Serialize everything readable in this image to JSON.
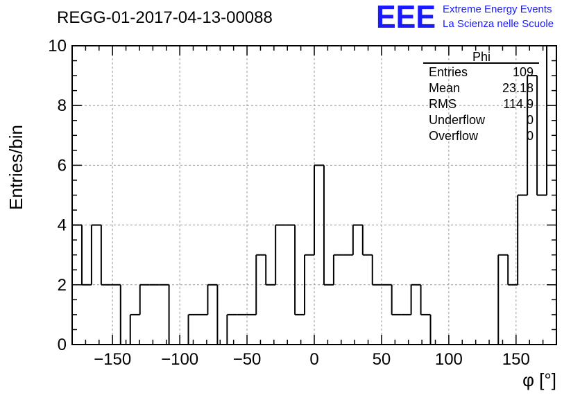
{
  "header": {
    "run_title": "REGG-01-2017-04-13-00088",
    "logo_text": "EEE",
    "logo_line1": "Extreme Energy Events",
    "logo_line2": "La Scienza nelle Scuole"
  },
  "stats": {
    "title": "Phi",
    "rows": [
      {
        "label": "Entries",
        "value": "109"
      },
      {
        "label": "Mean",
        "value": "23.18"
      },
      {
        "label": "RMS",
        "value": "114.9"
      },
      {
        "label": "Underflow",
        "value": "0"
      },
      {
        "label": "Overflow",
        "value": "0"
      }
    ]
  },
  "colors": {
    "line": "#000000",
    "grid": "#9a9a9a",
    "logo": "#1a1aff"
  },
  "chart_data": {
    "type": "bar",
    "histogram_style": "step",
    "xlabel": "φ [°]",
    "ylabel": "Entries/bin",
    "xlim": [
      -180,
      180
    ],
    "ylim": [
      0,
      10
    ],
    "grid": true,
    "bin_width": 7.2,
    "x_ticks": [
      -150,
      -100,
      -50,
      0,
      50,
      100,
      150
    ],
    "x_tick_labels": [
      "−150",
      "−100",
      "−50",
      "0",
      "50",
      "100",
      "150"
    ],
    "y_ticks": [
      0,
      2,
      4,
      6,
      8,
      10
    ],
    "y_tick_labels": [
      "0",
      "2",
      "4",
      "6",
      "8",
      "10"
    ],
    "values": [
      4,
      2,
      4,
      2,
      2,
      0,
      1,
      2,
      2,
      2,
      0,
      0,
      1,
      1,
      2,
      0,
      1,
      1,
      1,
      3,
      2,
      4,
      4,
      1,
      3,
      6,
      2,
      3,
      3,
      4,
      3,
      2,
      2,
      1,
      1,
      2,
      1,
      0,
      0,
      0,
      0,
      0,
      0,
      0,
      3,
      2,
      5,
      9,
      5,
      10
    ]
  }
}
